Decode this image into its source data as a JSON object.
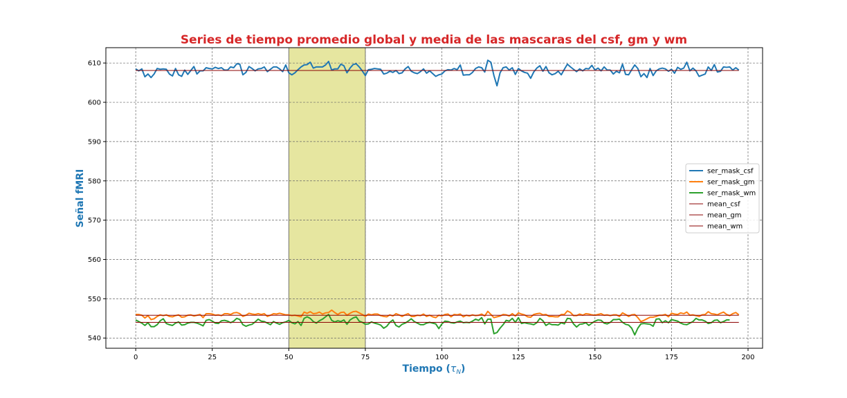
{
  "chart_data": {
    "type": "line",
    "title": "Series de tiempo promedio global y media de las mascaras del csf, gm y wm",
    "xlabel": "Tiempo (τN)",
    "xlabel_main": "Tiempo (",
    "xlabel_symbol": "τ",
    "xlabel_sub": "N",
    "xlabel_close": ")",
    "ylabel": "Señal fMRI",
    "xlim": [
      -9.75,
      204.75
    ],
    "ylim": [
      537.4,
      613.9
    ],
    "xticks": [
      0,
      25,
      50,
      75,
      100,
      125,
      150,
      175,
      200
    ],
    "yticks": [
      540,
      550,
      560,
      570,
      580,
      590,
      600,
      610
    ],
    "grid": true,
    "legend_position": "center-right",
    "colors": {
      "title": "#d62728",
      "axis_label": "#1f77b4",
      "shaded_region": "#e6e6a0",
      "mean_line": "#8b0000"
    },
    "highlight_region": {
      "x_start": 50,
      "x_end": 75
    },
    "series": [
      {
        "name": "ser_mask_csf",
        "color": "#1f77b4",
        "width": 2,
        "values": [
          608.5,
          608.0,
          608.5,
          606.5,
          607.2,
          606.3,
          607.2,
          608.6,
          608.4,
          608.5,
          608.4,
          607.2,
          606.7,
          608.6,
          607.0,
          606.6,
          608.2,
          607.1,
          608.1,
          609.1,
          607.2,
          608.0,
          608.0,
          608.8,
          608.6,
          608.5,
          608.9,
          608.6,
          608.8,
          608.2,
          608.2,
          609.0,
          608.8,
          609.8,
          609.7,
          607.0,
          607.6,
          609.1,
          608.6,
          608.0,
          608.5,
          608.6,
          609.0,
          607.8,
          608.4,
          609.0,
          609.0,
          608.5,
          607.8,
          609.5,
          607.5,
          607.0,
          607.5,
          608.3,
          609.0,
          609.5,
          609.6,
          610.2,
          608.7,
          609.0,
          609.0,
          609.0,
          609.5,
          610.4,
          608.2,
          608.5,
          608.5,
          609.7,
          609.3,
          607.5,
          608.7,
          609.6,
          609.8,
          609.0,
          608.0,
          606.8,
          608.3,
          608.4,
          608.6,
          608.5,
          608.4,
          607.2,
          607.4,
          607.9,
          607.6,
          608.1,
          607.3,
          607.5,
          608.5,
          609.1,
          607.9,
          607.5,
          607.3,
          607.8,
          608.5,
          607.4,
          608.0,
          607.3,
          606.6,
          607.0,
          607.2,
          608.0,
          608.3,
          608.2,
          608.6,
          608.3,
          609.5,
          606.9,
          607.0,
          607.0,
          607.6,
          608.6,
          609.0,
          608.8,
          607.7,
          610.7,
          610.2,
          606.8,
          604.2,
          607.5,
          608.8,
          609.0,
          608.2,
          608.8,
          607.1,
          608.6,
          608.0,
          607.6,
          607.4,
          606.1,
          607.7,
          608.7,
          609.3,
          607.9,
          609.1,
          607.5,
          607.0,
          607.3,
          607.9,
          607.0,
          608.4,
          609.7,
          609.0,
          608.4,
          607.8,
          608.5,
          608.0,
          608.6,
          608.5,
          609.4,
          608.2,
          608.7,
          608.0,
          609.0,
          608.2,
          608.2,
          607.2,
          607.9,
          607.5,
          609.7,
          607.1,
          607.0,
          608.3,
          609.5,
          608.6,
          606.5,
          607.3,
          606.3,
          608.6,
          606.8,
          608.0,
          608.5,
          608.7,
          608.5,
          607.9,
          608.4,
          607.4,
          608.9,
          608.4,
          608.7,
          610.2,
          608.0,
          608.7,
          608.0,
          606.6,
          606.9,
          607.2,
          609.0,
          608.1,
          609.6,
          607.7,
          607.9,
          609.0,
          608.9,
          609.0,
          608.2,
          608.8,
          608.2
        ]
      },
      {
        "name": "ser_mask_gm",
        "color": "#ff7f0e",
        "width": 2,
        "values": [
          546.0,
          546.0,
          545.8,
          545.1,
          545.7,
          544.7,
          544.9,
          545.5,
          545.9,
          545.7,
          545.9,
          545.5,
          545.4,
          545.7,
          545.9,
          545.3,
          545.4,
          545.8,
          545.9,
          545.6,
          545.8,
          546.0,
          545.2,
          546.2,
          546.2,
          546.1,
          545.8,
          545.9,
          545.7,
          546.2,
          546.2,
          546.0,
          546.4,
          546.5,
          546.2,
          545.5,
          545.8,
          546.3,
          546.1,
          546.0,
          546.2,
          546.0,
          546.2,
          545.5,
          545.8,
          546.2,
          546.1,
          546.3,
          546.1,
          545.9,
          545.9,
          545.7,
          545.8,
          545.6,
          545.4,
          546.6,
          546.3,
          546.7,
          546.2,
          546.3,
          546.6,
          546.1,
          546.4,
          546.5,
          547.1,
          546.5,
          546.0,
          546.5,
          546.6,
          545.8,
          546.3,
          546.7,
          546.8,
          546.4,
          546.0,
          545.5,
          546.1,
          545.9,
          546.1,
          546.1,
          545.7,
          545.5,
          545.4,
          545.9,
          545.6,
          546.2,
          545.9,
          545.5,
          545.9,
          546.2,
          545.5,
          545.5,
          545.8,
          545.7,
          546.1,
          545.5,
          545.8,
          545.4,
          545.2,
          545.8,
          545.6,
          546.0,
          546.1,
          545.4,
          546.0,
          545.9,
          546.1,
          545.4,
          545.8,
          545.6,
          545.9,
          545.7,
          545.8,
          546.1,
          545.6,
          546.8,
          546.0,
          545.2,
          545.4,
          545.6,
          546.0,
          545.9,
          545.6,
          546.2,
          545.6,
          546.4,
          546.1,
          545.9,
          545.4,
          545.3,
          546.0,
          546.2,
          546.3,
          545.9,
          546.0,
          545.5,
          545.5,
          545.4,
          545.4,
          546.0,
          546.0,
          546.9,
          546.5,
          545.7,
          545.7,
          546.1,
          545.8,
          546.2,
          546.1,
          545.9,
          545.8,
          546.0,
          546.2,
          545.8,
          545.9,
          545.7,
          545.9,
          545.9,
          545.5,
          546.4,
          546.0,
          545.5,
          545.9,
          546.0,
          545.2,
          544.2,
          544.5,
          544.9,
          545.3,
          545.3,
          545.5,
          545.8,
          545.8,
          546.0,
          545.4,
          546.3,
          546.1,
          546.0,
          546.4,
          546.2,
          546.6,
          545.8,
          545.9,
          545.7,
          545.5,
          545.9,
          546.0,
          546.7,
          546.2,
          546.1,
          545.9,
          546.3,
          546.6,
          546.0,
          545.7,
          546.2,
          546.5,
          545.9
        ]
      },
      {
        "name": "ser_mask_wm",
        "color": "#2ca02c",
        "width": 2,
        "values": [
          544.6,
          544.2,
          543.8,
          543.2,
          543.9,
          542.9,
          542.9,
          543.4,
          544.4,
          544.9,
          543.7,
          543.4,
          543.2,
          543.8,
          544.1,
          543.3,
          543.4,
          543.8,
          544.0,
          544.0,
          543.8,
          543.5,
          543.1,
          544.5,
          544.7,
          544.3,
          543.8,
          543.7,
          544.4,
          544.5,
          544.3,
          543.9,
          544.3,
          545.0,
          544.7,
          543.4,
          543.0,
          543.3,
          543.5,
          544.1,
          544.8,
          544.3,
          544.2,
          543.8,
          543.4,
          544.2,
          543.8,
          543.5,
          543.9,
          544.1,
          544.5,
          543.9,
          543.6,
          544.2,
          543.2,
          545.0,
          545.4,
          545.0,
          544.2,
          543.8,
          544.4,
          544.8,
          545.4,
          546.0,
          544.5,
          544.1,
          544.4,
          544.2,
          544.6,
          543.5,
          544.6,
          545.1,
          545.4,
          544.3,
          544.0,
          543.5,
          543.6,
          544.1,
          543.8,
          543.6,
          543.3,
          542.5,
          543.0,
          544.0,
          544.6,
          543.2,
          542.8,
          543.5,
          543.8,
          544.3,
          544.9,
          544.2,
          543.8,
          543.4,
          543.4,
          543.8,
          544.0,
          543.8,
          543.6,
          542.4,
          543.6,
          544.3,
          544.2,
          543.9,
          543.8,
          544.1,
          544.3,
          543.9,
          544.0,
          543.9,
          544.3,
          544.8,
          544.5,
          545.2,
          543.6,
          544.8,
          544.8,
          541.1,
          541.4,
          542.5,
          543.4,
          544.5,
          544.3,
          545.0,
          544.0,
          545.2,
          543.7,
          543.9,
          543.7,
          543.6,
          543.4,
          543.9,
          545.0,
          544.4,
          543.2,
          543.7,
          543.4,
          543.4,
          543.3,
          543.9,
          543.6,
          545.0,
          544.9,
          543.6,
          542.8,
          543.5,
          543.6,
          543.9,
          543.2,
          543.8,
          544.3,
          544.6,
          544.5,
          543.8,
          543.6,
          544.0,
          544.7,
          544.7,
          544.8,
          544.0,
          543.5,
          543.3,
          542.5,
          540.8,
          542.5,
          543.6,
          543.7,
          543.6,
          543.5,
          543.0,
          544.8,
          544.9,
          543.9,
          544.4,
          543.9,
          544.7,
          544.5,
          544.3,
          543.8,
          543.5,
          543.4,
          543.8,
          544.2,
          545.0,
          544.6,
          544.6,
          544.3,
          543.7,
          543.9,
          544.5,
          544.6,
          543.9,
          544.2,
          544.6,
          544.6
        ]
      },
      {
        "name": "mean_csf",
        "color": "#8b0000",
        "width": 1,
        "mean": 608.1
      },
      {
        "name": "mean_gm",
        "color": "#8b0000",
        "width": 1,
        "mean": 545.8
      },
      {
        "name": "mean_wm",
        "color": "#8b0000",
        "width": 1,
        "mean": 544.0
      }
    ]
  }
}
